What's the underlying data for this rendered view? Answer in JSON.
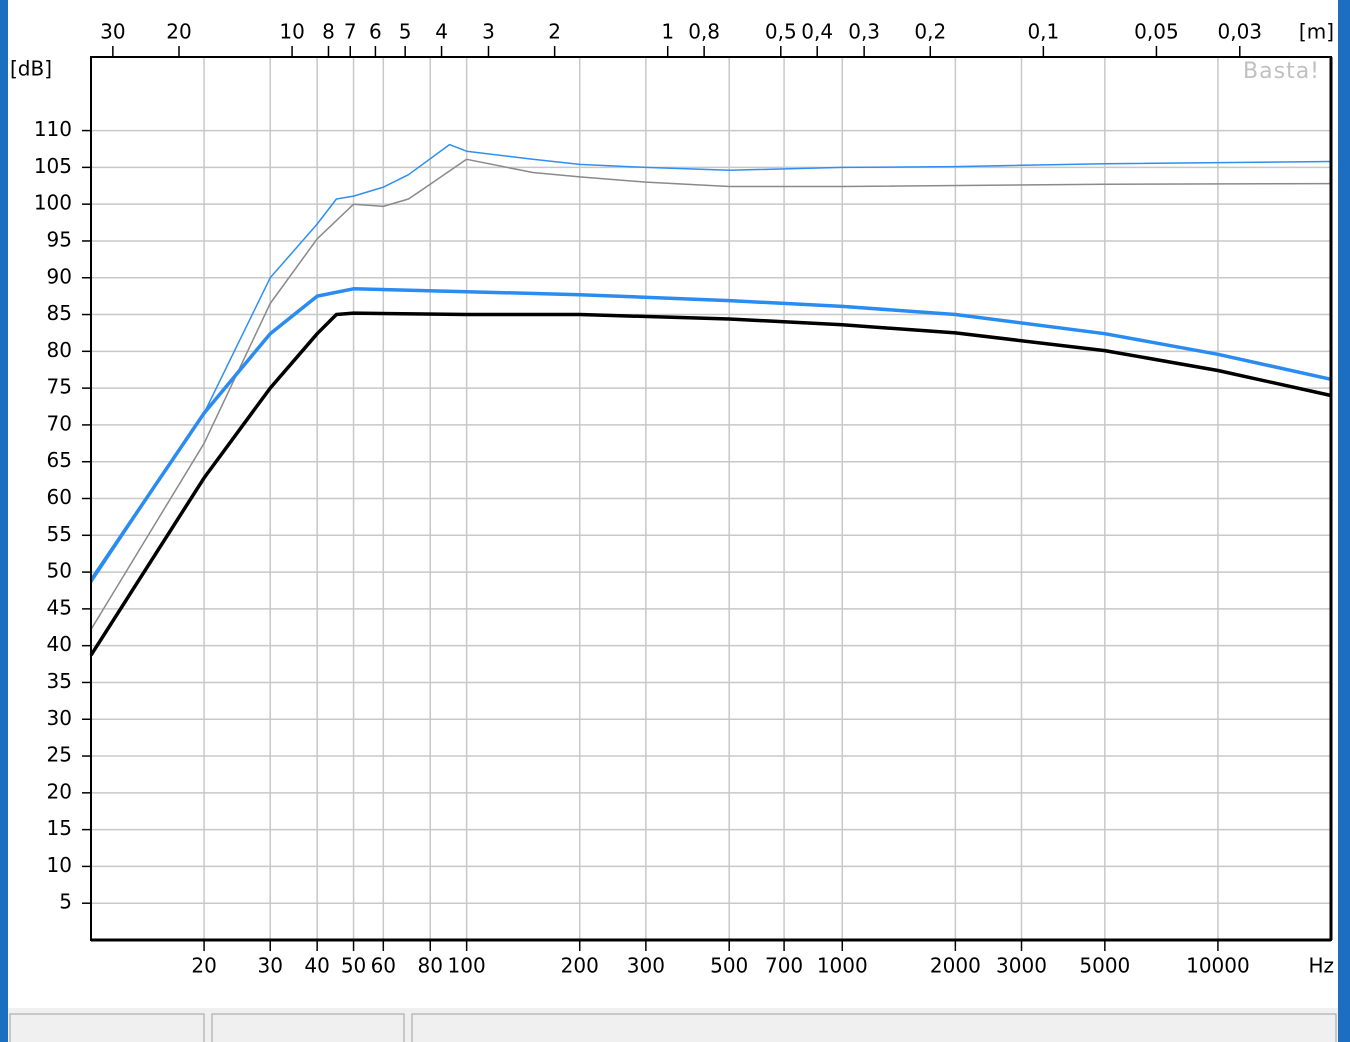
{
  "chart_data": {
    "type": "line",
    "y_label": "[dB]",
    "x_label": "Hz",
    "x2_label": "[m]",
    "watermark": "Basta!",
    "xscale": "log",
    "xlim": [
      10,
      20000
    ],
    "xticks": [
      20,
      30,
      40,
      50,
      60,
      80,
      100,
      200,
      300,
      500,
      700,
      1000,
      2000,
      3000,
      5000,
      10000
    ],
    "x2scale": "log",
    "x2lim": [
      34.3,
      0.01715
    ],
    "x2ticks": [
      30,
      20,
      10,
      8,
      7,
      6,
      5,
      4,
      3,
      2,
      1,
      {
        "value": 0.8,
        "label": "0,8"
      },
      {
        "value": 0.5,
        "label": "0,5"
      },
      {
        "value": 0.4,
        "label": "0,4"
      },
      {
        "value": 0.3,
        "label": "0,3"
      },
      {
        "value": 0.2,
        "label": "0,2"
      },
      {
        "value": 0.1,
        "label": "0,1"
      },
      {
        "value": 0.05,
        "label": "0,05"
      },
      {
        "value": 0.03,
        "label": "0,03"
      }
    ],
    "ylim": [
      0,
      120
    ],
    "yticks": [
      5,
      10,
      15,
      20,
      25,
      30,
      35,
      40,
      45,
      50,
      55,
      60,
      65,
      70,
      75,
      80,
      85,
      90,
      95,
      100,
      105,
      110
    ],
    "grid": true,
    "series": [
      {
        "color": "#8a8a8a",
        "width": 1.5,
        "x": [
          10,
          20,
          30,
          40,
          50,
          60,
          70,
          80,
          100,
          150,
          200,
          300,
          500,
          1000,
          5000,
          20000
        ],
        "values": [
          42.2,
          67.5,
          86.5,
          95.3,
          100,
          99.7,
          100.7,
          102.7,
          106.1,
          104.3,
          103.7,
          103,
          102.4,
          102.4,
          102.7,
          102.8
        ]
      },
      {
        "color": "#2f8ff0",
        "width": 1.5,
        "x": [
          10,
          20,
          30,
          40,
          45,
          50,
          60,
          70,
          90,
          100,
          150,
          200,
          300,
          500,
          1000,
          2000,
          5000,
          20000
        ],
        "values": [
          48.5,
          71.6,
          90,
          97.3,
          100.7,
          101.1,
          102.3,
          104,
          108.1,
          107.2,
          106.1,
          105.4,
          105,
          104.6,
          105,
          105.1,
          105.5,
          105.8
        ]
      },
      {
        "color": "#000000",
        "width": 3.5,
        "x": [
          10,
          20,
          30,
          40,
          45,
          50,
          100,
          200,
          500,
          1000,
          2000,
          5000,
          10000,
          20000
        ],
        "values": [
          38.7,
          62.8,
          75,
          82.4,
          85,
          85.2,
          85,
          85,
          84.4,
          83.6,
          82.5,
          80.1,
          77.4,
          74
        ]
      },
      {
        "color": "#2a8cf0",
        "width": 3.5,
        "x": [
          10,
          20,
          30,
          40,
          50,
          100,
          200,
          500,
          1000,
          2000,
          5000,
          10000,
          20000
        ],
        "values": [
          48.9,
          71.6,
          82.4,
          87.5,
          88.5,
          88.1,
          87.7,
          86.9,
          86.1,
          85,
          82.4,
          79.6,
          76.2
        ]
      }
    ]
  }
}
